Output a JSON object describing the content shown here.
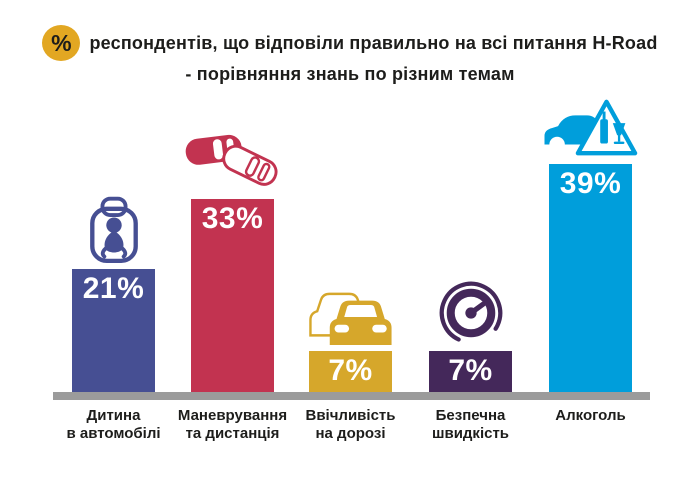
{
  "title": {
    "badge": "%",
    "line1": "респондентів, що відповіли правильно на всі питання H-Road",
    "line2": "- порівняння знань по різним темам"
  },
  "chart_data": {
    "type": "bar",
    "title": "% респондентів, що відповіли правильно на всі питання H-Road - порівняння знань по різним темам",
    "categories": [
      "Дитина в автомобілі",
      "Маневрування та дистанція",
      "Ввічливість на дорозі",
      "Безпечна швидкість",
      "Алкоголь"
    ],
    "category_lines": [
      [
        "Дитина",
        "в автомобілі"
      ],
      [
        "Маневрування",
        "та дистанція"
      ],
      [
        "Ввічливість",
        "на дорозі"
      ],
      [
        "Безпечна",
        "швидкість"
      ],
      [
        "Алкоголь"
      ]
    ],
    "values": [
      21,
      33,
      7,
      7,
      39
    ],
    "value_labels": [
      "21%",
      "33%",
      "7%",
      "7%",
      "39%"
    ],
    "colors": [
      "#464F93",
      "#C23350",
      "#D6A72B",
      "#44285A",
      "#009EDB"
    ],
    "icons": [
      "child-car-seat-icon",
      "maneuvering-cars-icon",
      "politeness-cars-icon",
      "speedometer-icon",
      "alcohol-warning-icon"
    ],
    "xlabel": "",
    "ylabel": "",
    "ylim": [
      0,
      40
    ],
    "grid": false,
    "legend": false
  },
  "colors": {
    "badge_bg": "#E2A722",
    "badge_text": "#1D1D1B",
    "title_text": "#1D1D1B",
    "baseline": "#9B9B9B",
    "bar_value_text": "#FFFFFF",
    "category_text": "#1D1D1B",
    "background": "#FFFFFF"
  }
}
